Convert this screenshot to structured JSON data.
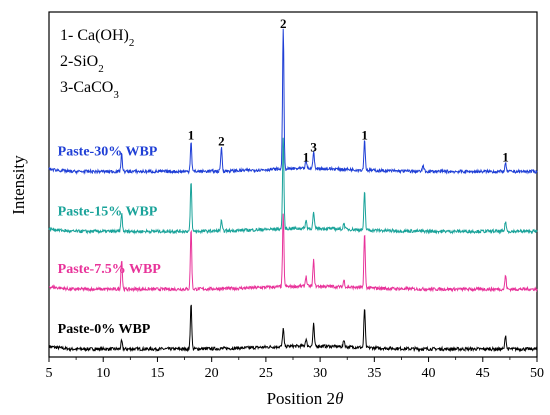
{
  "chart_data": {
    "type": "line",
    "title": "",
    "xlabel": "Position 2",
    "xlabel_symbol": "θ",
    "ylabel": "Intensity",
    "xlim": [
      5,
      50
    ],
    "x_ticks": [
      "5",
      "10",
      "15",
      "20",
      "25",
      "30",
      "35",
      "40",
      "45",
      "50"
    ],
    "y_ticks_shown": false,
    "grid": false,
    "legend_position": "top-left",
    "phase_legend": [
      {
        "label": "1- Ca(OH)",
        "sub": "2"
      },
      {
        "label": "2-SiO",
        "sub": "2"
      },
      {
        "label": "3-CaCO",
        "sub": "3"
      }
    ],
    "series": [
      {
        "name": "Paste-0% WBP",
        "color": "#000000",
        "baseline": 0,
        "peaks": [
          [
            11.7,
            8
          ],
          [
            18.1,
            46
          ],
          [
            26.6,
            18
          ],
          [
            28.7,
            7
          ],
          [
            29.4,
            22
          ],
          [
            32.2,
            7
          ],
          [
            34.1,
            40
          ],
          [
            47.1,
            14
          ]
        ]
      },
      {
        "name": "Paste-7.5% WBP",
        "color": "#e8339a",
        "baseline": 60,
        "peaks": [
          [
            11.7,
            30
          ],
          [
            18.1,
            60
          ],
          [
            26.6,
            72
          ],
          [
            28.7,
            10
          ],
          [
            29.4,
            26
          ],
          [
            32.2,
            7
          ],
          [
            34.1,
            54
          ],
          [
            47.1,
            14
          ]
        ]
      },
      {
        "name": "Paste-15% WBP",
        "color": "#1aa39a",
        "baseline": 118,
        "peaks": [
          [
            11.7,
            18
          ],
          [
            18.1,
            50
          ],
          [
            20.9,
            10
          ],
          [
            26.6,
            90
          ],
          [
            28.7,
            8
          ],
          [
            29.4,
            16
          ],
          [
            32.2,
            6
          ],
          [
            34.1,
            38
          ],
          [
            47.1,
            10
          ]
        ]
      },
      {
        "name": "Paste-30% WBP",
        "color": "#1f3fd6",
        "baseline": 178,
        "peaks": [
          [
            11.7,
            18
          ],
          [
            18.1,
            30
          ],
          [
            20.9,
            24
          ],
          [
            26.6,
            142
          ],
          [
            28.7,
            8
          ],
          [
            29.4,
            18
          ],
          [
            34.1,
            30
          ],
          [
            39.5,
            6
          ],
          [
            47.1,
            8
          ]
        ]
      }
    ],
    "peak_annotations": [
      {
        "label": "1",
        "x": 18.1,
        "y": 210
      },
      {
        "label": "2",
        "x": 20.9,
        "y": 204
      },
      {
        "label": "2",
        "x": 26.6,
        "y": 322
      },
      {
        "label": "1",
        "x": 28.7,
        "y": 188
      },
      {
        "label": "3",
        "x": 29.4,
        "y": 198
      },
      {
        "label": "1",
        "x": 34.1,
        "y": 210
      },
      {
        "label": "1",
        "x": 47.1,
        "y": 188
      }
    ],
    "ylim": [
      -8,
      338
    ]
  }
}
